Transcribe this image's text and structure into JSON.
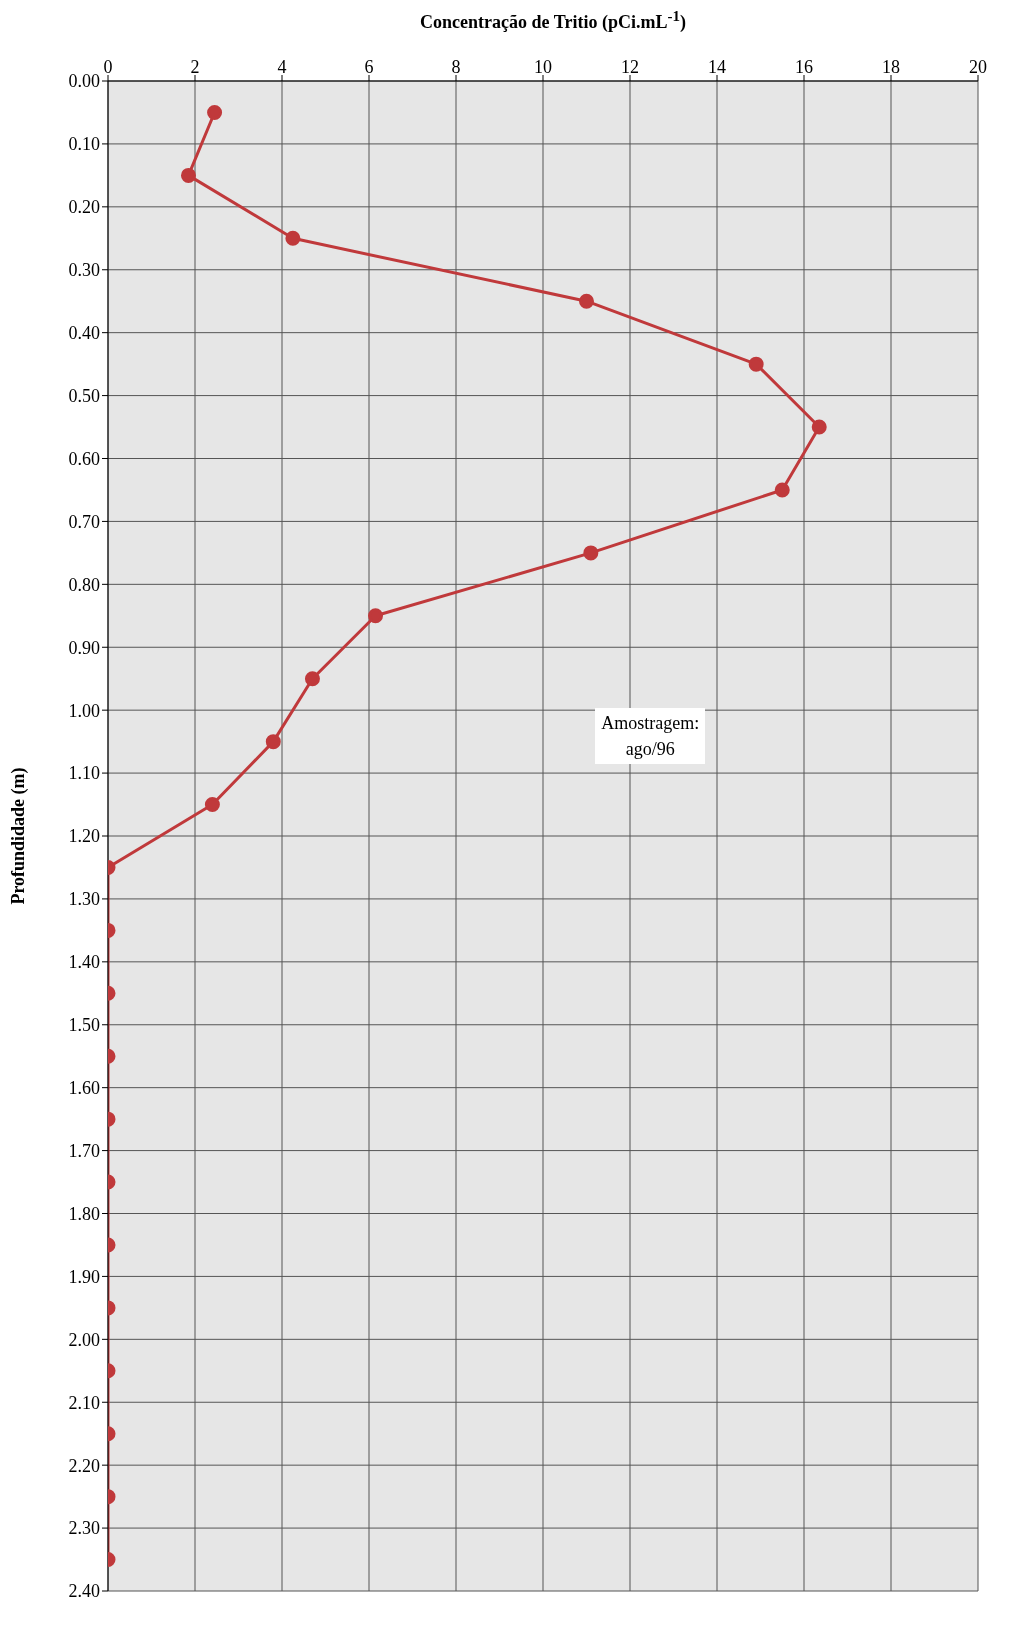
{
  "chart_data": {
    "type": "line",
    "xlabel": "Concentração de Tritio (pCi.mL$^{-1}$)",
    "ylabel": "Profundidade (m)",
    "annotations": [
      "Amostragem:\nago/96"
    ],
    "x": [
      2.45,
      1.85,
      4.25,
      11.0,
      14.9,
      16.35,
      15.5,
      11.1,
      6.15,
      4.7,
      3.8,
      2.4,
      0,
      0,
      0,
      0,
      0,
      0,
      0,
      0,
      0,
      0,
      0,
      0
    ],
    "series": [
      {
        "color": "#c0393b",
        "values": [
          0.05,
          0.15,
          0.25,
          0.35,
          0.45,
          0.55,
          0.65,
          0.75,
          0.85,
          0.95,
          1.05,
          1.15,
          1.25,
          1.35,
          1.45,
          1.55,
          1.65,
          1.75,
          1.85,
          1.95,
          2.05,
          2.15,
          2.25,
          2.35
        ]
      }
    ],
    "xlim": [
      0,
      20
    ],
    "xticks": [
      0,
      2,
      4,
      6,
      8,
      10,
      12,
      14,
      16,
      18,
      20
    ],
    "ylim": [
      2.4,
      0
    ],
    "yticks": [
      {
        "value": 0,
        "label": "0.00"
      },
      {
        "value": 0.1,
        "label": "0.10"
      },
      {
        "value": 0.2,
        "label": "0.20"
      },
      {
        "value": 0.3,
        "label": "0.30"
      },
      {
        "value": 0.4,
        "label": "0.40"
      },
      {
        "value": 0.5,
        "label": "0.50"
      },
      {
        "value": 0.6,
        "label": "0.60"
      },
      {
        "value": 0.7,
        "label": "0.70"
      },
      {
        "value": 0.8,
        "label": "0.80"
      },
      {
        "value": 0.9,
        "label": "0.90"
      },
      {
        "value": 1.0,
        "label": "1.00"
      },
      {
        "value": 1.1,
        "label": "1.10"
      },
      {
        "value": 1.2,
        "label": "1.20"
      },
      {
        "value": 1.3,
        "label": "1.30"
      },
      {
        "value": 1.4,
        "label": "1.40"
      },
      {
        "value": 1.5,
        "label": "1.50"
      },
      {
        "value": 1.6,
        "label": "1.60"
      },
      {
        "value": 1.7,
        "label": "1.70"
      },
      {
        "value": 1.8,
        "label": "1.80"
      },
      {
        "value": 1.9,
        "label": "1.90"
      },
      {
        "value": 2.0,
        "label": "2.00"
      },
      {
        "value": 2.1,
        "label": "2.10"
      },
      {
        "value": 2.2,
        "label": "2.20"
      },
      {
        "value": 2.3,
        "label": "2.30"
      },
      {
        "value": 2.4,
        "label": "2.40"
      }
    ],
    "grid": true,
    "marker": "circle",
    "line_style": "solid"
  }
}
